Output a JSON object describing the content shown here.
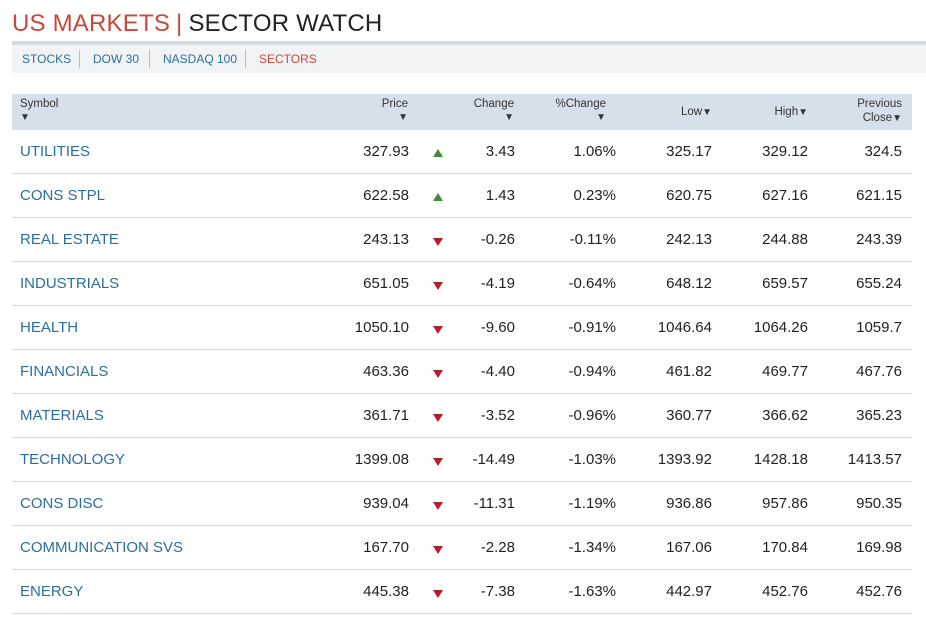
{
  "header": {
    "title_part1": "US MARKETS",
    "separator": "|",
    "title_part2": "SECTOR WATCH"
  },
  "tabs": [
    {
      "label": "STOCKS",
      "active": false
    },
    {
      "label": "DOW 30",
      "active": false
    },
    {
      "label": "NASDAQ 100",
      "active": false
    },
    {
      "label": "SECTORS",
      "active": true
    }
  ],
  "table": {
    "columns": {
      "symbol": "Symbol",
      "price": "Price",
      "change": "Change",
      "pct_change": "%Change",
      "low": "Low",
      "high": "High",
      "previous_line1": "Previous",
      "previous_line2": "Close"
    },
    "sort_arrow": "▼",
    "colors": {
      "up": "#3e8e3a",
      "down": "#b0202a",
      "link": "#2c6f9c",
      "accent": "#c9473d"
    },
    "rows": [
      {
        "symbol": "UTILITIES",
        "price": "327.93",
        "direction": "up",
        "change": "3.43",
        "pct": "1.06%",
        "low": "325.17",
        "high": "329.12",
        "prev": "324.5"
      },
      {
        "symbol": "CONS STPL",
        "price": "622.58",
        "direction": "up",
        "change": "1.43",
        "pct": "0.23%",
        "low": "620.75",
        "high": "627.16",
        "prev": "621.15"
      },
      {
        "symbol": "REAL ESTATE",
        "price": "243.13",
        "direction": "down",
        "change": "-0.26",
        "pct": "-0.11%",
        "low": "242.13",
        "high": "244.88",
        "prev": "243.39"
      },
      {
        "symbol": "INDUSTRIALS",
        "price": "651.05",
        "direction": "down",
        "change": "-4.19",
        "pct": "-0.64%",
        "low": "648.12",
        "high": "659.57",
        "prev": "655.24"
      },
      {
        "symbol": "HEALTH",
        "price": "1050.10",
        "direction": "down",
        "change": "-9.60",
        "pct": "-0.91%",
        "low": "1046.64",
        "high": "1064.26",
        "prev": "1059.7"
      },
      {
        "symbol": "FINANCIALS",
        "price": "463.36",
        "direction": "down",
        "change": "-4.40",
        "pct": "-0.94%",
        "low": "461.82",
        "high": "469.77",
        "prev": "467.76"
      },
      {
        "symbol": "MATERIALS",
        "price": "361.71",
        "direction": "down",
        "change": "-3.52",
        "pct": "-0.96%",
        "low": "360.77",
        "high": "366.62",
        "prev": "365.23"
      },
      {
        "symbol": "TECHNOLOGY",
        "price": "1399.08",
        "direction": "down",
        "change": "-14.49",
        "pct": "-1.03%",
        "low": "1393.92",
        "high": "1428.18",
        "prev": "1413.57"
      },
      {
        "symbol": "CONS DISC",
        "price": "939.04",
        "direction": "down",
        "change": "-11.31",
        "pct": "-1.19%",
        "low": "936.86",
        "high": "957.86",
        "prev": "950.35"
      },
      {
        "symbol": "COMMUNICATION SVS",
        "price": "167.70",
        "direction": "down",
        "change": "-2.28",
        "pct": "-1.34%",
        "low": "167.06",
        "high": "170.84",
        "prev": "169.98"
      },
      {
        "symbol": "ENERGY",
        "price": "445.38",
        "direction": "down",
        "change": "-7.38",
        "pct": "-1.63%",
        "low": "442.97",
        "high": "452.76",
        "prev": "452.76"
      }
    ]
  }
}
